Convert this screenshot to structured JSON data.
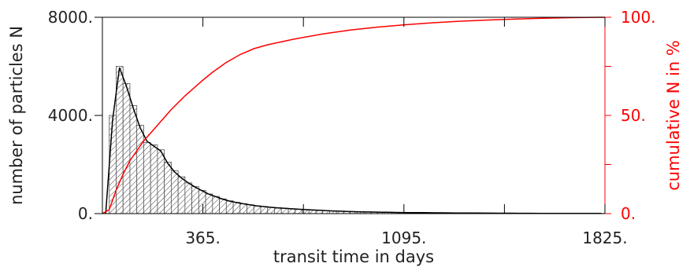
{
  "chart_data": {
    "type": "bar",
    "title": "",
    "xlabel": "transit time in days",
    "ylabel": "number of particles N",
    "y2label": "cumulative N in %",
    "xlim": [
      0,
      1825
    ],
    "ylim": [
      0,
      8000
    ],
    "y2lim": [
      0,
      100
    ],
    "x_ticks": [
      365,
      1095,
      1825
    ],
    "x_tick_labels": [
      "365.",
      "1095.",
      "1825."
    ],
    "x_minor_ticks": [
      730,
      1460
    ],
    "y_ticks": [
      0,
      4000,
      8000
    ],
    "y_tick_labels": [
      "0.",
      "4000.",
      "8000."
    ],
    "y2_ticks": [
      0,
      50,
      100
    ],
    "y2_tick_labels": [
      "0.",
      "50.",
      "100."
    ],
    "y2_minor_ticks": [
      25,
      75
    ],
    "grid": false,
    "bin_width": 25,
    "bin_start": 0,
    "histogram_values": [
      0,
      4000,
      6000,
      5300,
      4400,
      3600,
      2900,
      2800,
      2600,
      2100,
      1750,
      1500,
      1250,
      1100,
      950,
      800,
      700,
      600,
      520,
      460,
      400,
      360,
      320,
      290,
      260,
      240,
      220,
      200,
      180,
      165,
      150,
      135,
      120,
      110,
      100,
      90,
      80,
      75,
      70,
      65,
      60,
      55,
      50,
      45,
      42,
      40,
      38,
      36,
      34,
      32,
      30,
      28,
      26,
      24,
      22,
      20,
      19,
      18,
      17,
      16,
      15,
      14,
      13,
      12,
      11,
      10,
      10,
      9,
      9,
      8,
      8,
      7,
      7
    ],
    "series": [
      {
        "name": "",
        "axis": "left",
        "color": "#000000",
        "x": [
          12,
          37,
          62,
          87,
          112,
          137,
          162,
          187,
          212,
          237,
          262,
          287,
          312,
          337,
          362,
          387,
          412,
          437,
          462,
          487,
          512,
          537,
          562,
          587,
          612,
          637,
          662,
          687,
          712,
          737,
          762,
          787,
          812,
          837,
          862,
          887,
          912,
          937,
          962,
          987,
          1012,
          1037,
          1062,
          1087,
          1112,
          1137,
          1162,
          1187,
          1212,
          1237,
          1262,
          1287,
          1312,
          1337,
          1362,
          1387,
          1412,
          1437,
          1462,
          1487,
          1512,
          1537,
          1562,
          1587,
          1612,
          1637,
          1662,
          1687,
          1712,
          1737,
          1762,
          1787,
          1812
        ],
        "values": [
          0,
          3800,
          5950,
          5200,
          4300,
          3500,
          2950,
          2750,
          2550,
          2050,
          1700,
          1450,
          1250,
          1080,
          930,
          790,
          690,
          590,
          510,
          450,
          400,
          355,
          315,
          285,
          255,
          235,
          215,
          195,
          178,
          162,
          148,
          133,
          120,
          108,
          98,
          88,
          80,
          74,
          68,
          63,
          58,
          53,
          48,
          44,
          41,
          39,
          37,
          35,
          33,
          31,
          29,
          27,
          25,
          23,
          21,
          19,
          18,
          17,
          16,
          15,
          14,
          13,
          12,
          11,
          10,
          10,
          9,
          9,
          8,
          8,
          7,
          7,
          6
        ]
      },
      {
        "name": "",
        "axis": "right",
        "color": "#ff0000",
        "x": [
          0,
          25,
          50,
          75,
          100,
          150,
          200,
          250,
          300,
          365,
          400,
          450,
          500,
          550,
          600,
          700,
          800,
          900,
          1000,
          1100,
          1200,
          1300,
          1400,
          1500,
          1600,
          1700,
          1825
        ],
        "values": [
          0,
          2,
          12,
          20,
          27,
          37,
          45,
          53,
          60,
          68,
          72,
          77,
          81,
          84,
          86,
          89,
          91.5,
          93.5,
          95,
          96.2,
          97.2,
          98,
          98.6,
          99.1,
          99.5,
          99.8,
          100
        ]
      }
    ]
  },
  "colors": {
    "axis": "#000000",
    "right_axis": "#ff0000",
    "histogram_fill_hatch": "#444444"
  }
}
